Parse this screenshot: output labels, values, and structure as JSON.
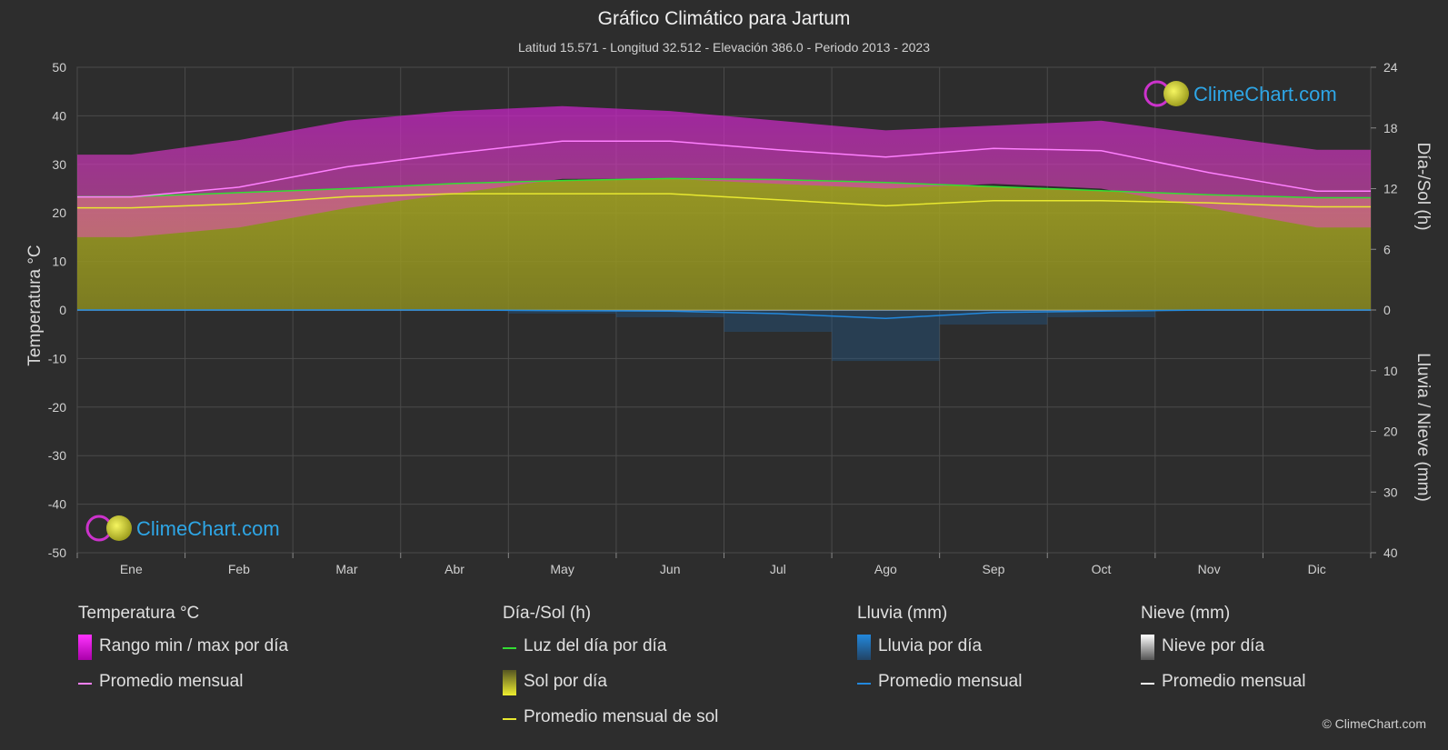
{
  "title": "Gráfico Climático para Jartum",
  "subtitle": "Latitud 15.571 - Longitud 32.512 - Elevación 386.0 - Periodo 2013 - 2023",
  "logo_text": "ClimeChart.com",
  "copyright": "© ClimeChart.com",
  "colors": {
    "temp_range": "#d91fd9",
    "temp_mean": "#ff80ff",
    "daylight": "#33dd33",
    "sunshine": "#b0b020",
    "sun_mean": "#e8e830",
    "rain": "#2288dd",
    "rain_mean": "#2288dd",
    "snow_mean": "#ffffff"
  },
  "legend": {
    "temperature": {
      "header": "Temperatura °C",
      "range": "Rango min / max por día",
      "mean": "Promedio mensual"
    },
    "sun": {
      "header": "Día-/Sol (h)",
      "daylight": "Luz del día por día",
      "sunshine": "Sol por día",
      "mean": "Promedio mensual de sol"
    },
    "rain": {
      "header": "Lluvia (mm)",
      "daily": "Lluvia por día",
      "mean": "Promedio mensual"
    },
    "snow": {
      "header": "Nieve (mm)",
      "daily": "Nieve por día",
      "mean": "Promedio mensual"
    }
  },
  "chart_data": {
    "type": "line",
    "categories": [
      "Ene",
      "Feb",
      "Mar",
      "Abr",
      "May",
      "Jun",
      "Jul",
      "Ago",
      "Sep",
      "Oct",
      "Nov",
      "Dic"
    ],
    "y_left": {
      "label": "Temperatura °C",
      "range": [
        -50,
        50
      ],
      "ticks": [
        50,
        40,
        30,
        20,
        10,
        0,
        -10,
        -20,
        -30,
        -40,
        -50
      ]
    },
    "y_right_top": {
      "label": "Día-/Sol (h)",
      "range": [
        0,
        24
      ],
      "ticks": [
        24,
        18,
        12,
        6,
        0
      ]
    },
    "y_right_bottom": {
      "label": "Lluvia / Nieve (mm)",
      "range": [
        0,
        40
      ],
      "ticks": [
        10,
        20,
        30,
        40
      ]
    },
    "series": [
      {
        "name": "Promedio mensual",
        "unit": "°C",
        "values": [
          23.3,
          25.3,
          29.5,
          32.3,
          34.8,
          34.8,
          33.0,
          31.5,
          33.3,
          32.8,
          28.3,
          24.5
        ]
      },
      {
        "name": "Rango min / max por día",
        "unit": "°C",
        "min": [
          15,
          17,
          21,
          24,
          27,
          27,
          26,
          25,
          26,
          25,
          21,
          17
        ],
        "max": [
          32,
          35,
          39,
          41,
          42,
          41,
          39,
          37,
          38,
          39,
          36,
          33
        ]
      },
      {
        "name": "Luz del día por día",
        "unit": "h",
        "values": [
          11.2,
          11.6,
          12.0,
          12.5,
          12.8,
          13.0,
          12.9,
          12.6,
          12.2,
          11.8,
          11.4,
          11.1
        ]
      },
      {
        "name": "Promedio mensual de sol",
        "unit": "h",
        "values": [
          10.1,
          10.5,
          11.2,
          11.5,
          11.5,
          11.5,
          10.9,
          10.3,
          10.8,
          10.8,
          10.6,
          10.2
        ]
      },
      {
        "name": "Lluvia promedio mensual",
        "unit": "mm",
        "values": [
          0,
          0,
          0,
          0,
          0.1,
          0.2,
          0.6,
          1.4,
          0.4,
          0.2,
          0,
          0
        ]
      },
      {
        "name": "Nieve promedio mensual",
        "unit": "mm",
        "values": [
          0,
          0,
          0,
          0,
          0,
          0,
          0,
          0,
          0,
          0,
          0,
          0
        ]
      }
    ],
    "grid": true
  }
}
